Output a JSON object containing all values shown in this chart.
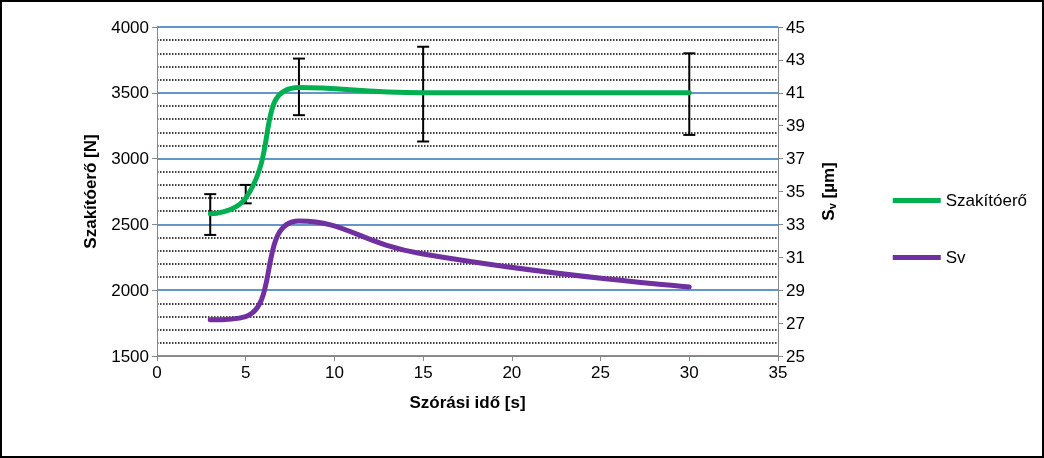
{
  "chart_data": {
    "type": "line",
    "xlabel": "Szórási idő [s]",
    "ylabel": "Szakítóerő [N]",
    "y2label": "S$_{v}$ [µm]",
    "x": [
      3,
      5,
      8,
      15,
      30
    ],
    "series": [
      {
        "name": "Szakítóerő",
        "color": "#00b050",
        "values": [
          2580,
          2700,
          3540,
          3500,
          3500
        ],
        "errors": [
          [
            2420,
            2730
          ],
          [
            2660,
            2800
          ],
          [
            3330,
            3760
          ],
          [
            3130,
            3850
          ],
          [
            3180,
            3800
          ]
        ]
      },
      {
        "name": "Sv",
        "color": "#7030a0",
        "axis": "y2",
        "values": [
          27.2,
          27.4,
          33.2,
          31.2,
          29.2
        ]
      }
    ],
    "xlim": [
      0,
      35
    ],
    "xticks": [
      0,
      5,
      10,
      15,
      20,
      25,
      30,
      35
    ],
    "ylim": [
      1500,
      4000
    ],
    "yticks": [
      1500,
      2000,
      2500,
      3000,
      3500,
      4000
    ],
    "y2lim": [
      25,
      45
    ],
    "y2ticks": [
      25,
      27,
      29,
      31,
      33,
      35,
      37,
      39,
      41,
      43,
      45
    ],
    "grid": "y",
    "legend": "right",
    "marker": "none",
    "line_style": "solid"
  }
}
